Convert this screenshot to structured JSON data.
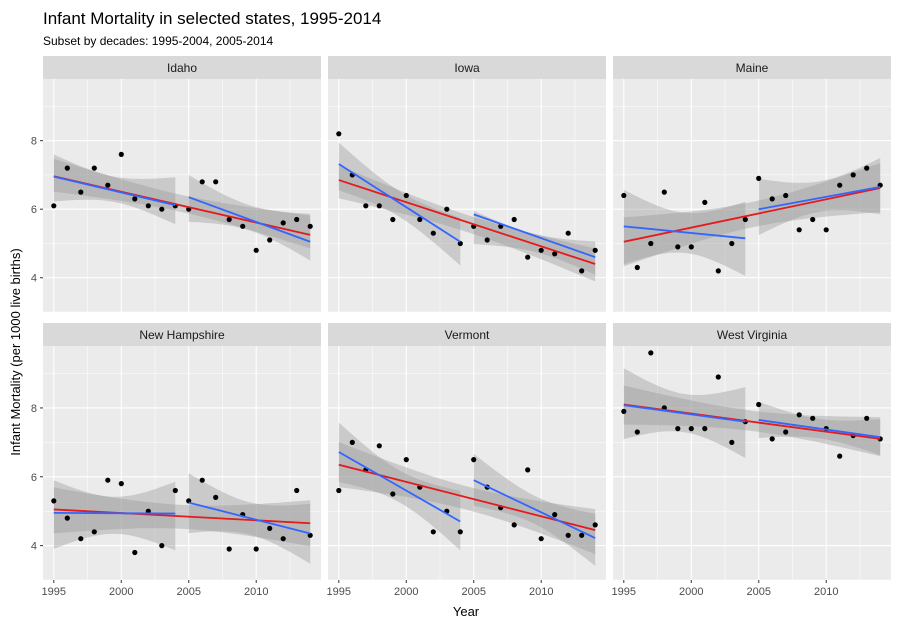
{
  "chart_data": {
    "type": "scatter",
    "title": "Infant Mortality in selected states, 1995-2014",
    "subtitle": "Subset by decades: 1995-2004, 2005-2014",
    "xlabel": "Year",
    "ylabel": "Infant Mortality (per 1000 live births)",
    "xlim": [
      1994.2,
      2014.8
    ],
    "ylim": [
      3.0,
      9.8
    ],
    "x_ticks": [
      1995,
      2000,
      2005,
      2010
    ],
    "y_ticks": [
      4,
      6,
      8
    ],
    "colors": {
      "overall_fit": "#e41a1c",
      "decade_fit": "#3366ff",
      "points": "#000000",
      "panel_bg": "#ebebeb",
      "strip_bg": "#d9d9d9",
      "ribbon": "#999999"
    },
    "panels": [
      {
        "state": "Idaho",
        "years": [
          1995,
          1996,
          1997,
          1998,
          1999,
          2000,
          2001,
          2002,
          2003,
          2004,
          2005,
          2006,
          2007,
          2008,
          2009,
          2010,
          2011,
          2012,
          2013,
          2014
        ],
        "values": [
          6.1,
          7.2,
          6.5,
          7.2,
          6.7,
          7.6,
          6.3,
          6.1,
          6.0,
          6.1,
          6.0,
          6.8,
          6.8,
          5.7,
          5.5,
          4.8,
          5.1,
          5.6,
          5.7,
          5.5
        ],
        "overall_fit": [
          [
            1995,
            6.96
          ],
          [
            2014,
            5.25
          ]
        ],
        "decade_fits": [
          [
            [
              1995,
              6.95
            ],
            [
              2004,
              6.12
            ]
          ],
          [
            [
              2005,
              6.35
            ],
            [
              2014,
              5.05
            ]
          ]
        ]
      },
      {
        "state": "Iowa",
        "years": [
          1995,
          1996,
          1997,
          1998,
          1999,
          2000,
          2001,
          2002,
          2003,
          2004,
          2005,
          2006,
          2007,
          2008,
          2009,
          2010,
          2011,
          2012,
          2013,
          2014
        ],
        "values": [
          8.2,
          7.0,
          6.1,
          6.1,
          5.7,
          6.4,
          5.7,
          5.3,
          6.0,
          5.0,
          5.5,
          5.1,
          5.5,
          5.7,
          4.6,
          4.8,
          4.7,
          5.3,
          4.2,
          4.8
        ],
        "overall_fit": [
          [
            1995,
            6.85
          ],
          [
            2014,
            4.4
          ]
        ],
        "decade_fits": [
          [
            [
              1995,
              7.32
            ],
            [
              2004,
              5.05
            ]
          ],
          [
            [
              2005,
              5.85
            ],
            [
              2014,
              4.6
            ]
          ]
        ]
      },
      {
        "state": "Maine",
        "years": [
          1995,
          1996,
          1997,
          1998,
          1999,
          2000,
          2001,
          2002,
          2003,
          2004,
          2005,
          2006,
          2007,
          2008,
          2009,
          2010,
          2011,
          2012,
          2013,
          2014
        ],
        "values": [
          6.4,
          4.3,
          5.0,
          6.5,
          4.9,
          4.9,
          6.2,
          4.2,
          5.0,
          5.7,
          6.9,
          6.3,
          6.4,
          5.4,
          5.7,
          5.4,
          6.7,
          7.0,
          7.2,
          6.7
        ],
        "overall_fit": [
          [
            1995,
            5.05
          ],
          [
            2014,
            6.62
          ]
        ],
        "decade_fits": [
          [
            [
              1995,
              5.5
            ],
            [
              2004,
              5.15
            ]
          ],
          [
            [
              2005,
              6.0
            ],
            [
              2014,
              6.65
            ]
          ]
        ]
      },
      {
        "state": "New Hampshire",
        "years": [
          1995,
          1996,
          1997,
          1998,
          1999,
          2000,
          2001,
          2002,
          2003,
          2004,
          2005,
          2006,
          2007,
          2008,
          2009,
          2010,
          2011,
          2012,
          2013,
          2014
        ],
        "values": [
          5.3,
          4.8,
          4.2,
          4.4,
          5.9,
          5.8,
          3.8,
          5.0,
          4.0,
          5.6,
          5.3,
          5.9,
          5.4,
          3.9,
          4.9,
          3.9,
          4.5,
          4.2,
          5.6,
          4.3
        ],
        "overall_fit": [
          [
            1995,
            5.05
          ],
          [
            2014,
            4.65
          ]
        ],
        "decade_fits": [
          [
            [
              1995,
              4.95
            ],
            [
              2004,
              4.93
            ]
          ],
          [
            [
              2005,
              5.25
            ],
            [
              2014,
              4.35
            ]
          ]
        ]
      },
      {
        "state": "Vermont",
        "years": [
          1995,
          1996,
          1997,
          1998,
          1999,
          2000,
          2001,
          2002,
          2003,
          2004,
          2005,
          2006,
          2007,
          2008,
          2009,
          2010,
          2011,
          2012,
          2013,
          2014
        ],
        "values": [
          5.6,
          7.0,
          6.2,
          6.9,
          5.5,
          6.5,
          5.7,
          4.4,
          5.0,
          4.4,
          6.5,
          5.7,
          5.1,
          4.6,
          6.2,
          4.2,
          4.9,
          4.3,
          4.3,
          4.6
        ],
        "overall_fit": [
          [
            1995,
            6.35
          ],
          [
            2014,
            4.45
          ]
        ],
        "decade_fits": [
          [
            [
              1995,
              6.72
            ],
            [
              2004,
              4.7
            ]
          ],
          [
            [
              2005,
              5.9
            ],
            [
              2014,
              4.22
            ]
          ]
        ]
      },
      {
        "state": "West Virginia",
        "years": [
          1995,
          1996,
          1997,
          1998,
          1999,
          2000,
          2001,
          2002,
          2003,
          2004,
          2005,
          2006,
          2007,
          2008,
          2009,
          2010,
          2011,
          2012,
          2013,
          2014
        ],
        "values": [
          7.9,
          7.3,
          9.6,
          8.0,
          7.4,
          7.4,
          7.4,
          8.9,
          7.0,
          7.6,
          8.1,
          7.1,
          7.3,
          7.8,
          7.7,
          7.4,
          6.6,
          7.2,
          7.7,
          7.1
        ],
        "overall_fit": [
          [
            1995,
            8.1
          ],
          [
            2014,
            7.1
          ]
        ],
        "decade_fits": [
          [
            [
              1995,
              8.08
            ],
            [
              2004,
              7.6
            ]
          ],
          [
            [
              2005,
              7.65
            ],
            [
              2014,
              7.15
            ]
          ]
        ]
      }
    ]
  }
}
